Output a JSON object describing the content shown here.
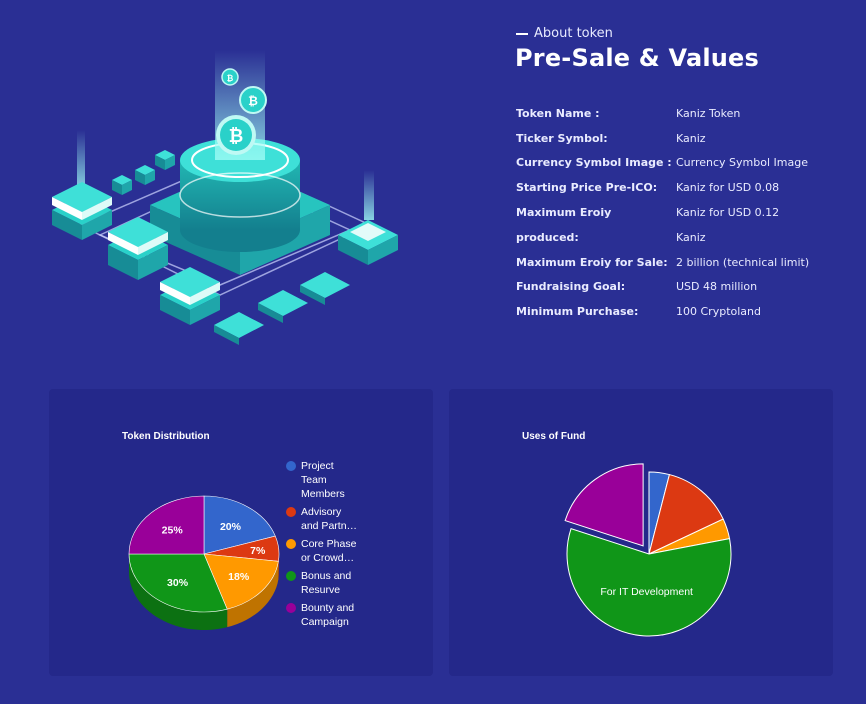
{
  "section": {
    "eyebrow": "About token",
    "title": "Pre-Sale & Values"
  },
  "token_info": [
    {
      "label": "Token Name :",
      "value": "Kaniz Token"
    },
    {
      "label": "Ticker Symbol:",
      "value": "Kaniz"
    },
    {
      "label": "Currency Symbol Image :",
      "value": "Currency Symbol Image"
    },
    {
      "label": "Starting Price Pre-ICO:",
      "value": "Kaniz for USD 0.08"
    },
    {
      "label": "Maximum Eroiy",
      "value": "Kaniz for USD 0.12"
    },
    {
      "label": "produced:",
      "value": "Kaniz"
    },
    {
      "label": "Maximum Eroiy for Sale:",
      "value": "2 billion (technical limit)"
    },
    {
      "label": "Fundraising Goal:",
      "value": "USD 48 million"
    },
    {
      "label": "Minimum Purchase:",
      "value": "100 Cryptoland"
    }
  ],
  "colors": {
    "background": "#2a2f94",
    "panel": "#24288a",
    "teal": "#2ad1c9"
  },
  "icons": [
    "bitcoin-icon"
  ],
  "chart_data": [
    {
      "type": "pie",
      "title": "Token Distribution",
      "categories": [
        "Project Team Members",
        "Advisory and Partn…",
        "Core Phase or Crowd…",
        "Bonus and Resurve",
        "Bounty and Campaign"
      ],
      "legend_display": [
        "Project\nTeam\nMembers",
        "Advisory\nand Partn…",
        "Core Phase\nor Crowd…",
        "Bonus and\nResurve",
        "Bounty and\nCampaign"
      ],
      "values": [
        20,
        7,
        18,
        30,
        25
      ],
      "data_labels": [
        "20%",
        "7%",
        "18%",
        "30%",
        "25%"
      ],
      "colors": [
        "#3366cc",
        "#dc3912",
        "#ff9900",
        "#109618",
        "#990099"
      ],
      "legend": "right",
      "three_d": true
    },
    {
      "type": "pie",
      "title": "Uses of Fund",
      "values": [
        4,
        14,
        4,
        58,
        20
      ],
      "colors": [
        "#3366cc",
        "#dc3912",
        "#ff9900",
        "#109618",
        "#990099"
      ],
      "slice_labels": [
        "",
        "",
        "",
        "For IT Development",
        ""
      ],
      "exploded_slice": 4
    }
  ]
}
